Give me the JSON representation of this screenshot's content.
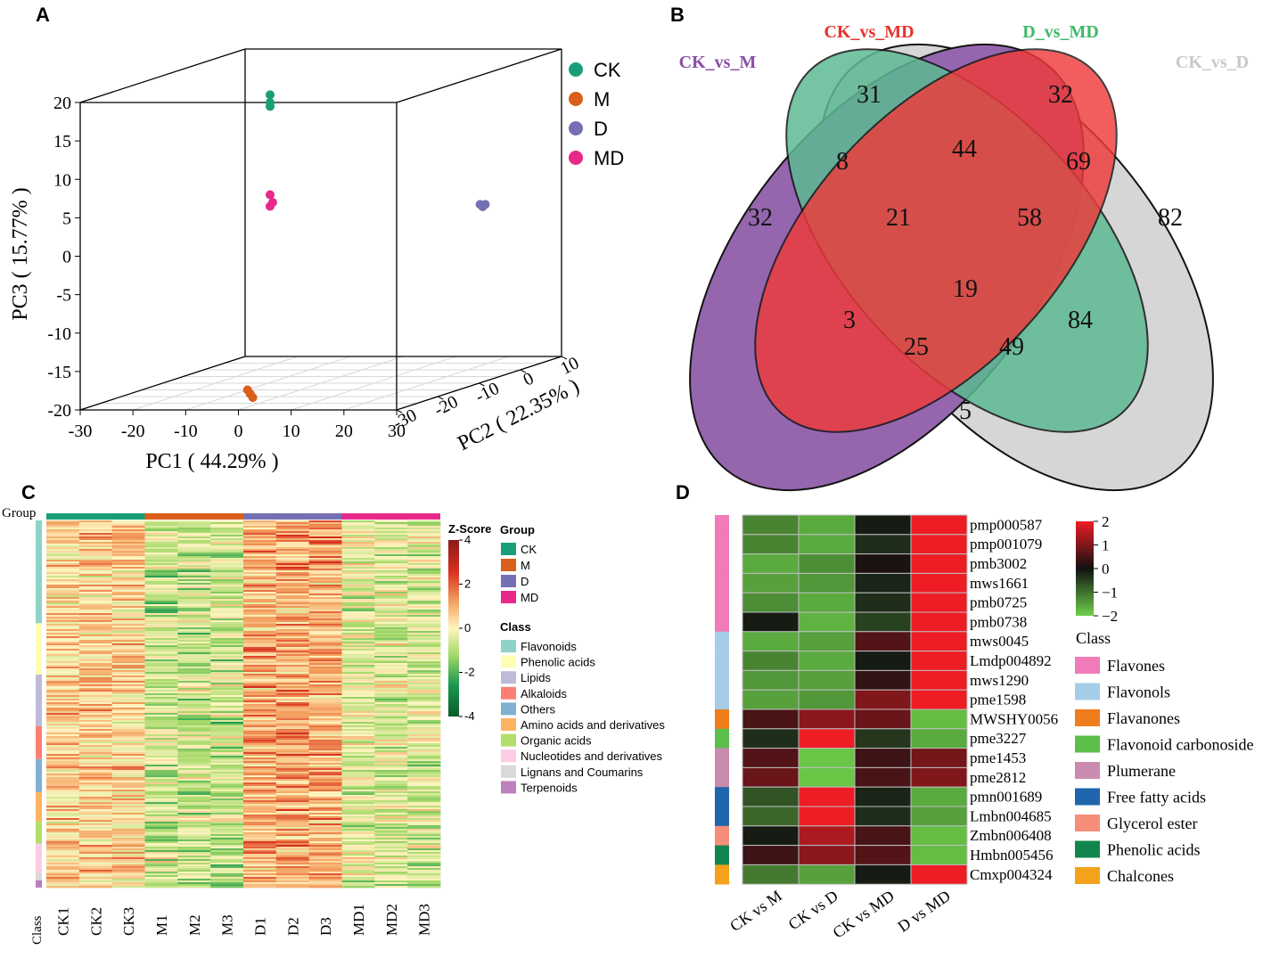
{
  "panels": {
    "a": "A",
    "b": "B",
    "c": "C",
    "d": "D"
  },
  "chart_data": [
    {
      "panel": "A",
      "type": "scatter",
      "subtype": "3d-pca",
      "xlabel": "PC1 ( 44.29% )",
      "ylabel": "PC2 ( 22.35% )",
      "zlabel": "PC3 ( 15.77% )",
      "xlim": [
        -30,
        30
      ],
      "ylim": [
        -30,
        10
      ],
      "zlim": [
        -20,
        20
      ],
      "x_ticks": [
        "-30",
        "-20",
        "-10",
        "0",
        "10",
        "20",
        "30"
      ],
      "y_ticks": [
        "-30",
        "-20",
        "-10",
        "0",
        "10"
      ],
      "z_ticks": [
        "20",
        "15",
        "10",
        "5",
        "0",
        "-5",
        "-10",
        "-15",
        "-20"
      ],
      "series": [
        {
          "name": "CK",
          "color": "#1a9e77",
          "points": [
            [
              6,
              -30,
              21
            ],
            [
              6,
              -30,
              20
            ],
            [
              6,
              -30,
              19.5
            ]
          ]
        },
        {
          "name": "M",
          "color": "#d95f1b",
          "points": [
            [
              -10,
              -15,
              -20
            ],
            [
              -9.5,
              -15,
              -20.5
            ],
            [
              -9,
              -15,
              -21
            ]
          ]
        },
        {
          "name": "D",
          "color": "#7570b3",
          "points": [
            [
              38,
              -20,
              5
            ],
            [
              38.5,
              -20,
              4.7
            ],
            [
              39,
              -20,
              5
            ]
          ]
        },
        {
          "name": "MD",
          "color": "#e7298a",
          "points": [
            [
              6,
              -30,
              8
            ],
            [
              6.5,
              -30,
              7
            ],
            [
              6,
              -30,
              6.5
            ]
          ]
        }
      ]
    },
    {
      "panel": "B",
      "type": "venn",
      "sets": [
        {
          "name": "CK_vs_M",
          "color": "#8a4fa8"
        },
        {
          "name": "CK_vs_MD",
          "color": "#e8312e"
        },
        {
          "name": "D_vs_MD",
          "color": "#3fb96a"
        },
        {
          "name": "CK_vs_D",
          "color": "#cfcfcf"
        }
      ],
      "regions": [
        {
          "sets": [
            "CK_vs_M"
          ],
          "value": 32
        },
        {
          "sets": [
            "CK_vs_MD"
          ],
          "value": 31
        },
        {
          "sets": [
            "D_vs_MD"
          ],
          "value": 32
        },
        {
          "sets": [
            "CK_vs_D"
          ],
          "value": 82
        },
        {
          "sets": [
            "CK_vs_M",
            "CK_vs_MD"
          ],
          "value": 8
        },
        {
          "sets": [
            "CK_vs_MD",
            "D_vs_MD"
          ],
          "value": 44
        },
        {
          "sets": [
            "D_vs_MD",
            "CK_vs_D"
          ],
          "value": 69
        },
        {
          "sets": [
            "CK_vs_M",
            "CK_vs_MD",
            "D_vs_MD"
          ],
          "value": 21
        },
        {
          "sets": [
            "CK_vs_MD",
            "D_vs_MD",
            "CK_vs_D"
          ],
          "value": 58
        },
        {
          "sets": [
            "CK_vs_M",
            "CK_vs_MD",
            "D_vs_MD",
            "CK_vs_D"
          ],
          "value": 19
        },
        {
          "sets": [
            "CK_vs_M",
            "D_vs_MD"
          ],
          "value": 3
        },
        {
          "sets": [
            "CK_vs_MD",
            "CK_vs_D"
          ],
          "value": 84
        },
        {
          "sets": [
            "CK_vs_M",
            "D_vs_MD",
            "CK_vs_D"
          ],
          "value": 25
        },
        {
          "sets": [
            "CK_vs_M",
            "CK_vs_MD",
            "CK_vs_D"
          ],
          "value": 49
        },
        {
          "sets": [
            "CK_vs_M",
            "CK_vs_D"
          ],
          "value": 5
        }
      ]
    },
    {
      "panel": "C",
      "type": "heatmap",
      "row_annotation_label": "Group",
      "col_annotation_label": "Class",
      "columns": [
        "CK1",
        "CK2",
        "CK3",
        "M1",
        "M2",
        "M3",
        "D1",
        "D2",
        "D3",
        "MD1",
        "MD2",
        "MD3"
      ],
      "groups": [
        {
          "name": "CK",
          "color": "#1a9e77",
          "columns": 3
        },
        {
          "name": "M",
          "color": "#d95f1b",
          "columns": 3
        },
        {
          "name": "D",
          "color": "#7570b3",
          "columns": 3
        },
        {
          "name": "MD",
          "color": "#e7298a",
          "columns": 3
        }
      ],
      "scale_title": "Z-Score",
      "scale_ticks": [
        "4",
        "2",
        "0",
        "-2",
        "-4"
      ],
      "scale_range": [
        -4,
        4
      ],
      "group_legend_title": "Group",
      "class_legend_title": "Class",
      "classes": [
        {
          "name": "Flavonoids",
          "color": "#8dd3c7",
          "share": 0.28
        },
        {
          "name": "Phenolic acids",
          "color": "#ffffb3",
          "share": 0.14
        },
        {
          "name": "Lipids",
          "color": "#bebada",
          "share": 0.14
        },
        {
          "name": "Alkaloids",
          "color": "#fb8072",
          "share": 0.09
        },
        {
          "name": "Others",
          "color": "#80b1d3",
          "share": 0.09
        },
        {
          "name": "Amino acids and derivatives",
          "color": "#fdb462",
          "share": 0.08
        },
        {
          "name": "Organic acids",
          "color": "#b3de69",
          "share": 0.06
        },
        {
          "name": "Nucleotides and derivatives",
          "color": "#fccde5",
          "share": 0.08
        },
        {
          "name": "Lignans and Coumarins",
          "color": "#d9d9d9",
          "share": 0.02
        },
        {
          "name": "Terpenoids",
          "color": "#bc80bd",
          "share": 0.02
        }
      ]
    },
    {
      "panel": "D",
      "type": "heatmap",
      "columns": [
        "CK vs M",
        "CK vs D",
        "CK vs MD",
        "D vs MD"
      ],
      "scale_ticks": [
        "2",
        "1",
        "0",
        "−1",
        "−2"
      ],
      "scale_range": [
        -2,
        2
      ],
      "class_legend_title": "Class",
      "rows": [
        {
          "name": "pmp000587",
          "class": "Flavones",
          "values": [
            -1.2,
            -1.6,
            -0.1,
            2
          ]
        },
        {
          "name": "pmp001079",
          "class": "Flavones",
          "values": [
            -1.2,
            -1.6,
            -0.3,
            2
          ]
        },
        {
          "name": "pmb3002",
          "class": "Flavones",
          "values": [
            -1.6,
            -1.3,
            0.1,
            2
          ]
        },
        {
          "name": "mws1661",
          "class": "Flavones",
          "values": [
            -1.5,
            -1.4,
            -0.2,
            2
          ]
        },
        {
          "name": "pmb0725",
          "class": "Flavones",
          "values": [
            -1.3,
            -1.6,
            -0.3,
            2
          ]
        },
        {
          "name": "pmb0738",
          "class": "Flavones",
          "values": [
            -0.1,
            -1.7,
            -0.5,
            2
          ]
        },
        {
          "name": "mws0045",
          "class": "Flavonols",
          "values": [
            -1.6,
            -1.5,
            0.6,
            2
          ]
        },
        {
          "name": "Lmdp004892",
          "class": "Flavonols",
          "values": [
            -1.2,
            -1.6,
            -0.1,
            2
          ]
        },
        {
          "name": "mws1290",
          "class": "Flavonols",
          "values": [
            -1.4,
            -1.5,
            0.3,
            2
          ]
        },
        {
          "name": "pme1598",
          "class": "Flavonols",
          "values": [
            -1.5,
            -1.4,
            1.0,
            2
          ]
        },
        {
          "name": "MWSHY0056",
          "class": "Flavanones",
          "values": [
            0.5,
            1.1,
            0.8,
            -1.8
          ]
        },
        {
          "name": "pme3227",
          "class": "Flavonoid carbonoside",
          "values": [
            -0.3,
            2,
            -0.4,
            -1.6
          ]
        },
        {
          "name": "pme1453",
          "class": "Plumerane",
          "values": [
            0.6,
            -1.9,
            0.4,
            0.9
          ]
        },
        {
          "name": "pme2812",
          "class": "Plumerane",
          "values": [
            0.8,
            -1.9,
            0.5,
            1.0
          ]
        },
        {
          "name": "pmn001689",
          "class": "Free fatty acids",
          "values": [
            -0.7,
            2,
            -0.2,
            -1.6
          ]
        },
        {
          "name": "Lmbn004685",
          "class": "Free fatty acids",
          "values": [
            -0.9,
            2,
            -0.3,
            -1.5
          ]
        },
        {
          "name": "Zmbn006408",
          "class": "Glycerol ester",
          "values": [
            -0.1,
            1.4,
            0.5,
            -1.8
          ]
        },
        {
          "name": "Hmbn005456",
          "class": "Phenolic acids",
          "values": [
            0.4,
            1.1,
            0.6,
            -1.8
          ]
        },
        {
          "name": "Cmxp004324",
          "class": "Chalcones",
          "values": [
            -1.1,
            -1.5,
            -0.1,
            2
          ]
        }
      ],
      "classes": [
        {
          "name": "Flavones",
          "color": "#f07bb8"
        },
        {
          "name": "Flavonols",
          "color": "#a6cde8"
        },
        {
          "name": "Flavanones",
          "color": "#f07d1b"
        },
        {
          "name": "Flavonoid carbonoside",
          "color": "#5cbf4b"
        },
        {
          "name": "Plumerane",
          "color": "#c98bb0"
        },
        {
          "name": "Free fatty acids",
          "color": "#1f66ac"
        },
        {
          "name": "Glycerol ester",
          "color": "#f48e78"
        },
        {
          "name": "Phenolic acids",
          "color": "#12854e"
        },
        {
          "name": "Chalcones",
          "color": "#f4a21c"
        }
      ]
    }
  ]
}
